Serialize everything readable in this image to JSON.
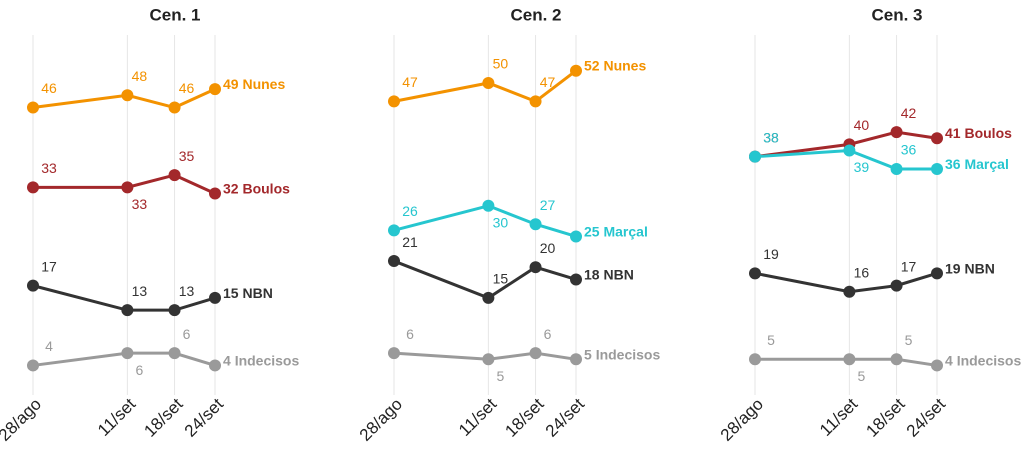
{
  "chart_data": [
    {
      "type": "line",
      "title": "Cen. 1",
      "categories": [
        "28/ago",
        "11/set",
        "18/set",
        "24/set"
      ],
      "ylim": [
        0,
        57
      ],
      "grid": true,
      "series": [
        {
          "name": "Nunes",
          "color": "#f39200",
          "values": [
            46,
            48,
            46,
            49
          ]
        },
        {
          "name": "Boulos",
          "color": "#a3282b",
          "values": [
            33,
            33,
            35,
            32
          ]
        },
        {
          "name": "NBN",
          "color": "#333333",
          "values": [
            17,
            13,
            13,
            15
          ]
        },
        {
          "name": "Indecisos",
          "color": "#9a9a9a",
          "values": [
            4,
            6,
            6,
            4
          ]
        }
      ]
    },
    {
      "type": "line",
      "title": "Cen. 2",
      "categories": [
        "28/ago",
        "11/set",
        "18/set",
        "24/set"
      ],
      "ylim": [
        0,
        57
      ],
      "grid": true,
      "series": [
        {
          "name": "Nunes",
          "color": "#f39200",
          "values": [
            47,
            50,
            47,
            52
          ]
        },
        {
          "name": "Marçal",
          "color": "#26c6cf",
          "values": [
            26,
            30,
            27,
            25
          ]
        },
        {
          "name": "NBN",
          "color": "#333333",
          "values": [
            21,
            15,
            20,
            18
          ]
        },
        {
          "name": "Indecisos",
          "color": "#9a9a9a",
          "values": [
            6,
            5,
            6,
            5
          ]
        }
      ]
    },
    {
      "type": "line",
      "title": "Cen. 3",
      "categories": [
        "28/ago",
        "11/set",
        "18/set",
        "24/set"
      ],
      "ylim": [
        0,
        57
      ],
      "grid": true,
      "series": [
        {
          "name": "Boulos",
          "color": "#a3282b",
          "values": [
            38,
            40,
            42,
            41
          ]
        },
        {
          "name": "Marçal",
          "color": "#26c6cf",
          "values": [
            38,
            39,
            36,
            36
          ]
        },
        {
          "name": "NBN",
          "color": "#333333",
          "values": [
            19,
            16,
            17,
            19
          ]
        },
        {
          "name": "Indecisos",
          "color": "#9a9a9a",
          "values": [
            5,
            5,
            5,
            4
          ]
        }
      ]
    }
  ]
}
